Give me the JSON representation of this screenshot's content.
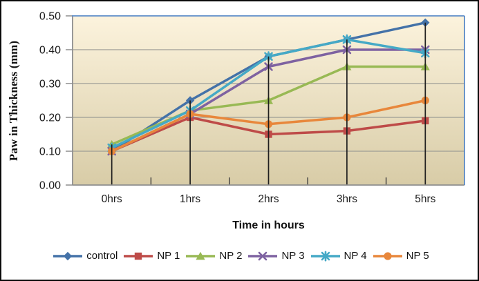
{
  "chart_data": {
    "type": "line",
    "title": "",
    "xlabel": "Time in hours",
    "ylabel": "Paw in Thickness (mm)",
    "categories": [
      "0hrs",
      "1hrs",
      "2hrs",
      "3hrs",
      "5hrs"
    ],
    "series": [
      {
        "name": "control",
        "marker": "diamond",
        "color": "#4472A8",
        "values": [
          0.1,
          0.25,
          0.38,
          0.43,
          0.48
        ]
      },
      {
        "name": "NP 1",
        "marker": "square",
        "color": "#BE4B48",
        "values": [
          0.1,
          0.2,
          0.15,
          0.16,
          0.19
        ]
      },
      {
        "name": "NP 2",
        "marker": "triangle",
        "color": "#98B954",
        "values": [
          0.12,
          0.22,
          0.25,
          0.35,
          0.35
        ]
      },
      {
        "name": "NP 3",
        "marker": "x",
        "color": "#7E62A1",
        "values": [
          0.1,
          0.21,
          0.35,
          0.4,
          0.4
        ]
      },
      {
        "name": "NP 4",
        "marker": "star",
        "color": "#45A9C6",
        "values": [
          0.11,
          0.22,
          0.38,
          0.43,
          0.39
        ]
      },
      {
        "name": "NP 5",
        "marker": "circle",
        "color": "#E8873B",
        "values": [
          0.1,
          0.21,
          0.18,
          0.2,
          0.25
        ]
      }
    ],
    "y_ticks": [
      "0.00",
      "0.10",
      "0.20",
      "0.30",
      "0.40",
      "0.50"
    ],
    "ylim": [
      0,
      0.5
    ],
    "grid": true,
    "legend_position": "bottom",
    "drop_lines": true,
    "colors": {
      "plot_bg_top": "#FCF3DD",
      "plot_bg_bottom": "#D8CCA7",
      "plot_border_blue": "#5B8BC9",
      "gridline": "#9D9D96",
      "axis": "#8E8E8E",
      "drop_line": "#1F1F1F",
      "text": "#1a1a1a"
    }
  }
}
